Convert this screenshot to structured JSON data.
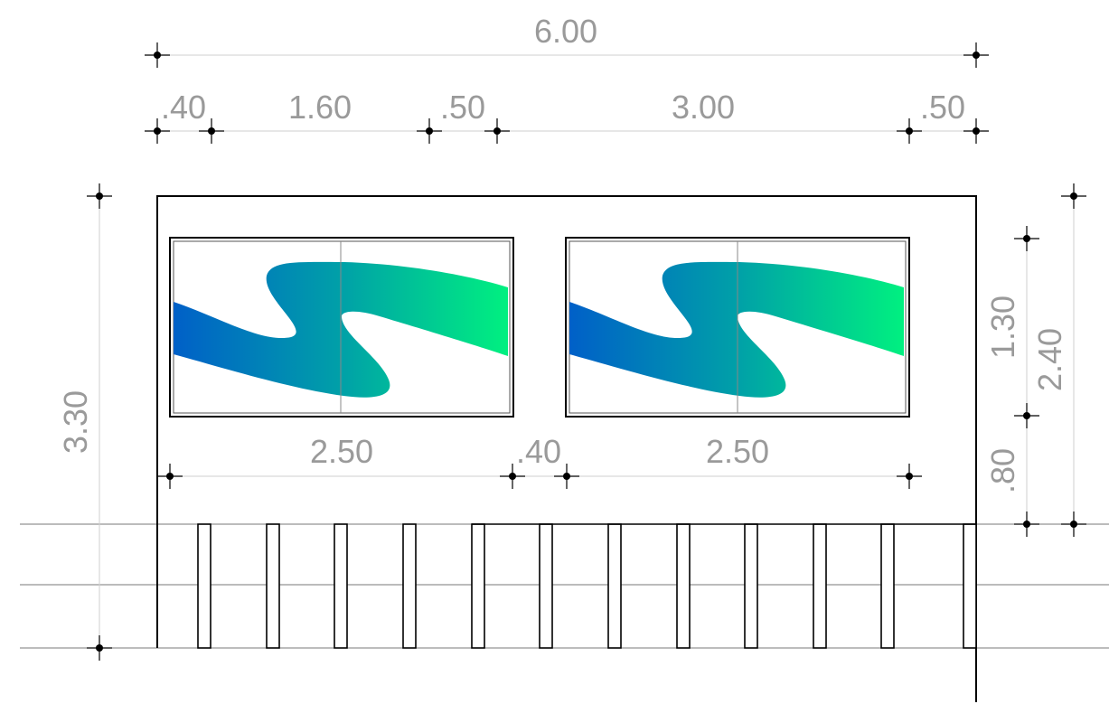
{
  "dimensions": {
    "top_total": "6.00",
    "top_segments": [
      ".40",
      "1.60",
      ".50",
      "3.00",
      ".50"
    ],
    "window_widths": [
      "2.50",
      ".40",
      "2.50"
    ],
    "left_height": "3.30",
    "right_inner": [
      "1.30",
      ".80"
    ],
    "right_outer": "2.40"
  },
  "colors": {
    "gradient_start": "#0060c8",
    "gradient_mid": "#00a0a8",
    "gradient_end": "#00f080"
  }
}
